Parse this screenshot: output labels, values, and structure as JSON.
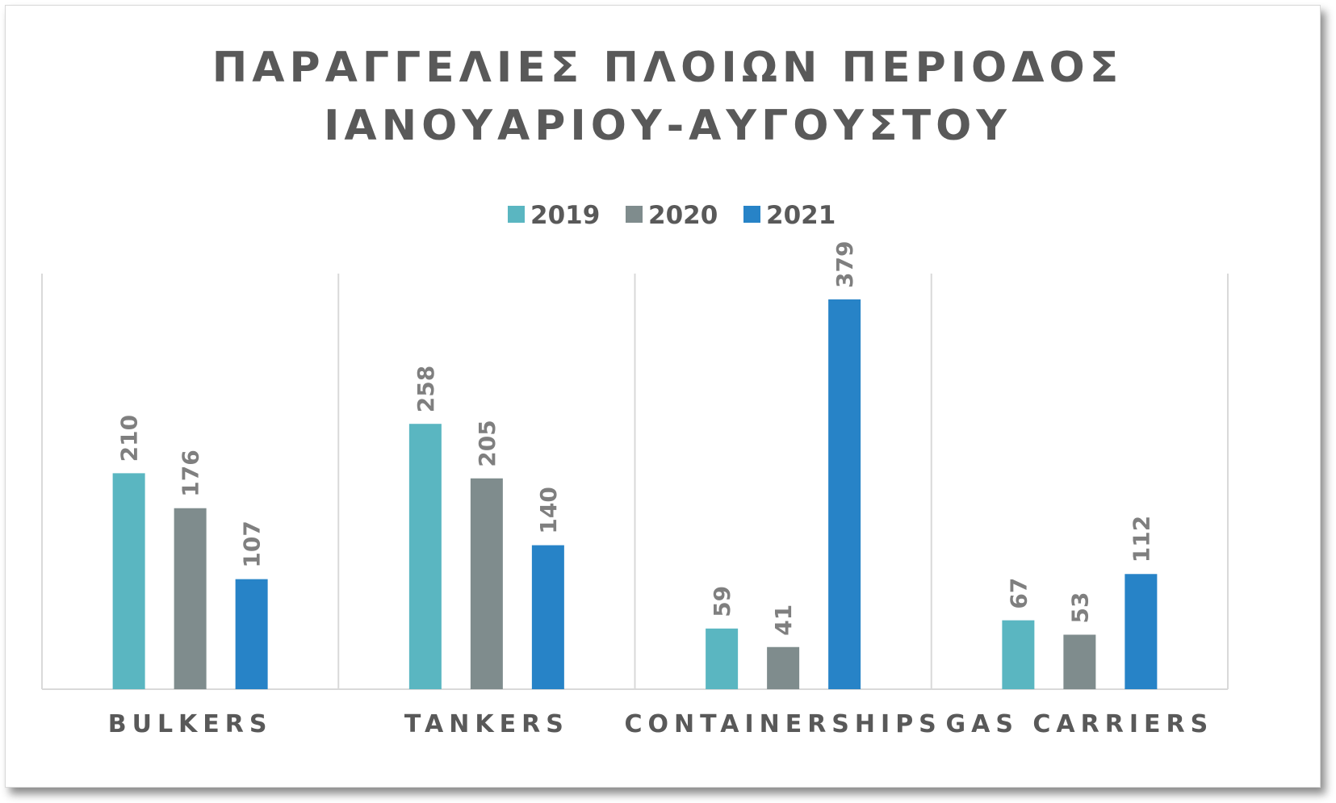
{
  "chart_data": {
    "type": "bar",
    "title": [
      "ΠΑΡΑΓΓΕΛΙΕΣ ΠΛΟΙΩΝ ΠΕΡΙΟΔΟΣ",
      "ΙΑΝΟΥΑΡΙΟΥ-ΑΥΓΟΥΣΤΟΥ"
    ],
    "categories": [
      "BULKERS",
      "TANKERS",
      "CONTAINERSHIPS",
      "GAS CARRIERS"
    ],
    "series": [
      {
        "name": "2019",
        "color": "#5ab6c1",
        "values": [
          210,
          258,
          59,
          67
        ]
      },
      {
        "name": "2020",
        "color": "#7f8c8d",
        "values": [
          176,
          205,
          41,
          53
        ]
      },
      {
        "name": "2021",
        "color": "#2783c7",
        "values": [
          107,
          140,
          379,
          112
        ]
      }
    ],
    "ylim": [
      0,
      400
    ],
    "legend_position": "top",
    "data_labels": "rotated, above bars",
    "grid": "vertical separators between categories"
  }
}
